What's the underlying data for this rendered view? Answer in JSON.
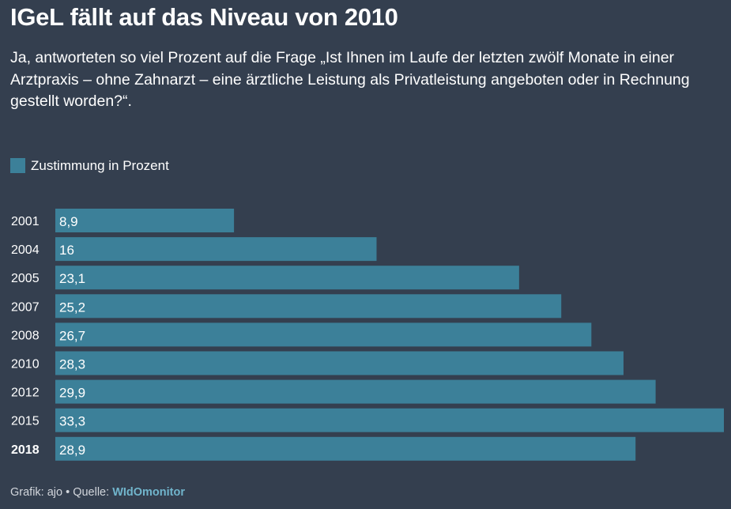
{
  "title": "IGeL fällt auf das Niveau von 2010",
  "subtitle": "Ja, antworteten so viel Prozent auf die Frage „Ist Ihnen im Laufe der letzten zwölf Monate in einer Arztpraxis – ohne Zahnarzt – eine ärztliche Leistung als Privatleistung angeboten oder in Rechnung gestellt worden?“.",
  "footer": {
    "credit": "Grafik: ajo • Quelle: ",
    "source": "WIdOmonitor"
  },
  "colors": {
    "background": "#343f4f",
    "bar": "#3c8099",
    "text": "#ffffff"
  },
  "chart_data": {
    "type": "bar",
    "orientation": "horizontal",
    "categories": [
      "2001",
      "2004",
      "2005",
      "2007",
      "2008",
      "2010",
      "2012",
      "2015",
      "2018"
    ],
    "value_labels": [
      "8,9",
      "16",
      "23,1",
      "25,2",
      "26,7",
      "28,3",
      "29,9",
      "33,3",
      "28,9"
    ],
    "highlighted_category": "2018",
    "series": [
      {
        "name": "Zustimmung in Prozent",
        "values": [
          8.9,
          16,
          23.1,
          25.2,
          26.7,
          28.3,
          29.9,
          33.3,
          28.9
        ]
      }
    ],
    "xlim": [
      0,
      33.3
    ],
    "grid": false,
    "legend": "top-left"
  }
}
